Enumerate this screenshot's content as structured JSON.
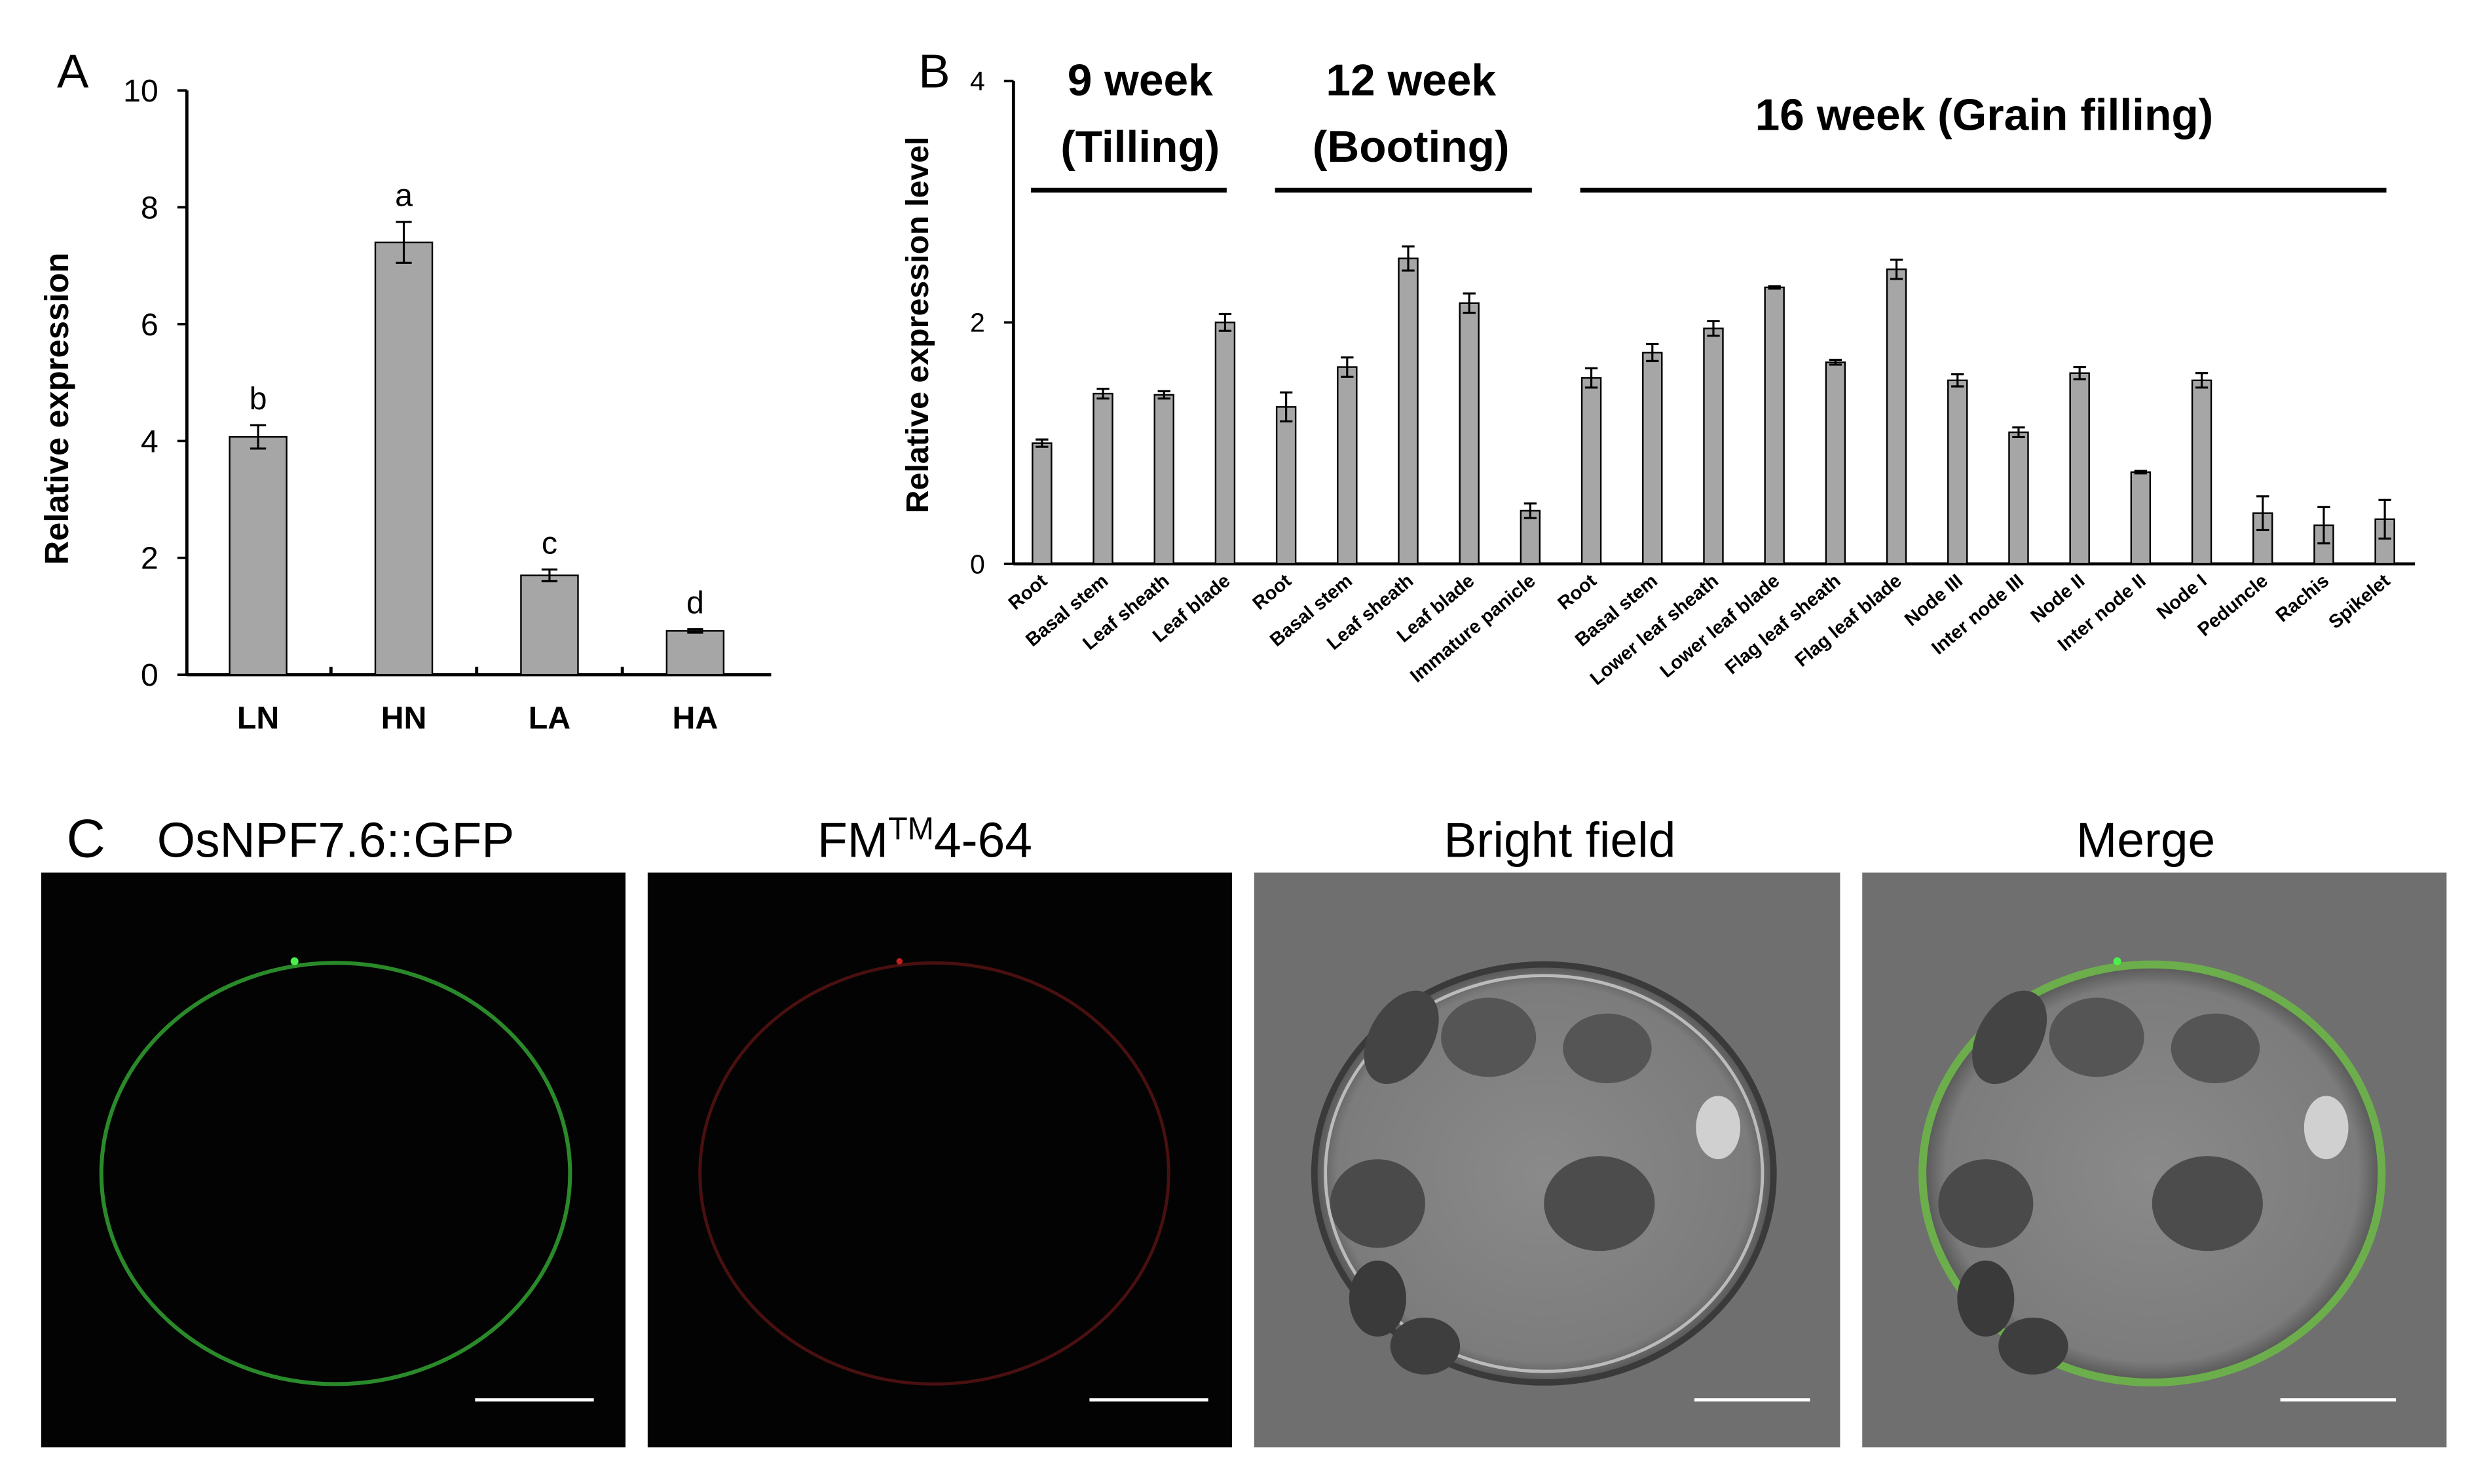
{
  "chart_data": [
    {
      "type": "bar",
      "panel": "A",
      "ylabel": "Relative expression",
      "categories": [
        "LN",
        "HN",
        "LA",
        "HA"
      ],
      "values": [
        4.07,
        7.4,
        1.7,
        0.75
      ],
      "error": [
        0.2,
        0.35,
        0.1,
        0.03
      ],
      "annotations": [
        "b",
        "a",
        "c",
        "d"
      ],
      "color": "#a6a6a6",
      "ylim": [
        0,
        10
      ],
      "yticks": [
        0,
        2,
        4,
        6,
        8,
        10
      ]
    },
    {
      "type": "bar",
      "panel": "B",
      "ylabel": "Relative expression level",
      "groups": [
        {
          "title": "9 week",
          "subtitle": "(Tilling)"
        },
        {
          "title": "12 week",
          "subtitle": "(Booting)"
        },
        {
          "title": "16 week (Grain filling)"
        }
      ],
      "categories": [
        "Root",
        "Basal stem",
        "Leaf sheath",
        "Leaf blade",
        "Root",
        "Basal stem",
        "Leaf sheath",
        "Leaf blade",
        "Immature panicle",
        "Root",
        "Basal stem",
        "Lower leaf sheath",
        "Lower leaf blade",
        "Flag leaf sheath",
        "Flag leaf blade",
        "Node III",
        "Inter node III",
        "Node II",
        "Inter node II",
        "Node I",
        "Peduncle",
        "Rachis",
        "Spikelet"
      ],
      "values": [
        1.0,
        1.41,
        1.4,
        2.0,
        1.3,
        1.63,
        2.53,
        2.16,
        0.44,
        1.54,
        1.75,
        1.95,
        2.29,
        1.67,
        2.44,
        1.52,
        1.09,
        1.58,
        0.76,
        1.52,
        0.42,
        0.32,
        0.37
      ],
      "error": [
        0.03,
        0.04,
        0.03,
        0.07,
        0.12,
        0.08,
        0.1,
        0.08,
        0.06,
        0.08,
        0.07,
        0.06,
        0.01,
        0.02,
        0.08,
        0.05,
        0.04,
        0.05,
        0.01,
        0.06,
        0.14,
        0.15,
        0.16
      ],
      "color": "#a6a6a6",
      "ylim": [
        0,
        4
      ],
      "yticks": [
        0,
        2,
        4
      ]
    }
  ],
  "panel_c": {
    "letter": "C",
    "titles": {
      "gfp": "OsNPF7.6::GFP",
      "fm": "FM",
      "fm_sup": "TM",
      "fm_rest": "4-64",
      "bright": "Bright field",
      "merge": "Merge"
    }
  }
}
